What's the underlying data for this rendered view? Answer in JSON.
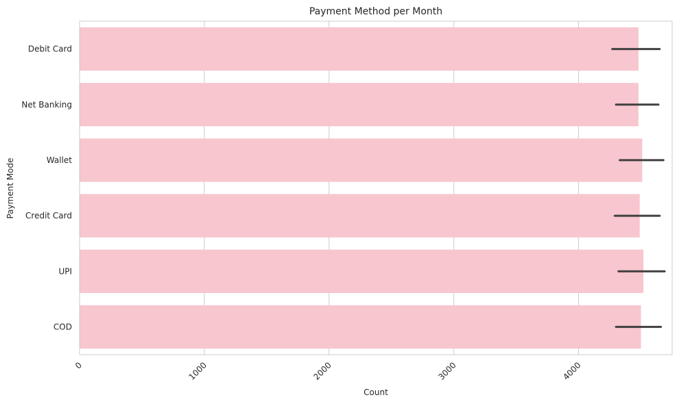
{
  "chart_data": {
    "type": "bar",
    "orientation": "horizontal",
    "title": "Payment Method per Month",
    "xlabel": "Count",
    "ylabel": "Payment Mode",
    "categories": [
      "Debit Card",
      "Net Banking",
      "Wallet",
      "Credit Card",
      "UPI",
      "COD"
    ],
    "values": [
      4480,
      4480,
      4510,
      4490,
      4520,
      4500
    ],
    "error_low": [
      4270,
      4300,
      4330,
      4290,
      4320,
      4300
    ],
    "error_high": [
      4650,
      4640,
      4680,
      4650,
      4690,
      4660
    ],
    "xlim": [
      0,
      4750
    ],
    "xticks": [
      0,
      1000,
      2000,
      3000,
      4000
    ],
    "xtick_rotation": 45,
    "grid": "vertical",
    "bar_color": "#f7c6ce",
    "error_color": "#404040",
    "grid_color": "#cccccc"
  }
}
